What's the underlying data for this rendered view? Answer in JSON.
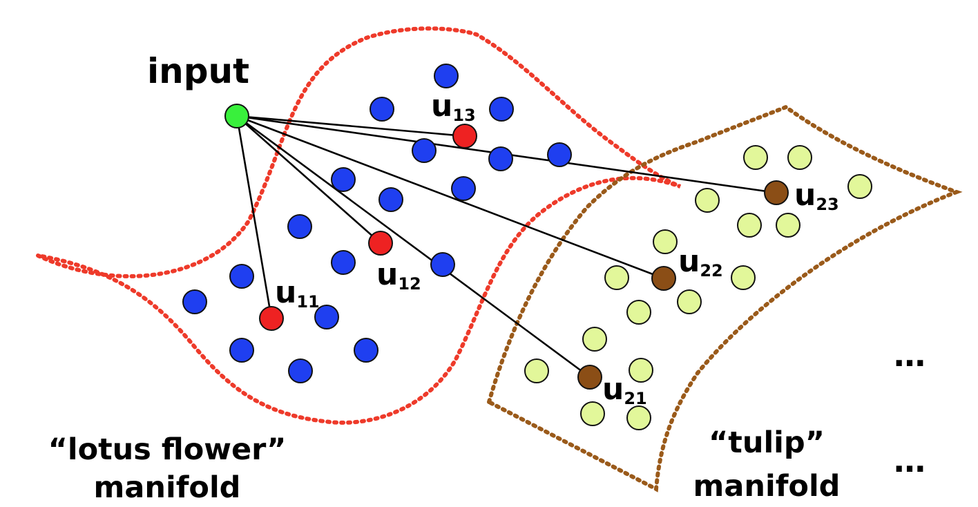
{
  "title": "input",
  "colors": {
    "lotus_boundary": "#ee3a2a",
    "tulip_boundary": "#9a5a1a",
    "lotus_points": "#1f3ff0",
    "tulip_points": "#e2f79a",
    "lotus_selected": "#ee2222",
    "tulip_selected": "#8b4e16",
    "input_node": "#39f03c",
    "edge": "#000000"
  },
  "manifolds": [
    {
      "id": "lotus",
      "line1": "“lotus flower”",
      "line2": "manifold"
    },
    {
      "id": "tulip",
      "line1": "“tulip”",
      "line2": "manifold"
    }
  ],
  "selected": [
    {
      "id": "u11",
      "letter": "u",
      "subscript": "11",
      "manifold": "lotus"
    },
    {
      "id": "u12",
      "letter": "u",
      "subscript": "12",
      "manifold": "lotus"
    },
    {
      "id": "u13",
      "letter": "u",
      "subscript": "13",
      "manifold": "lotus"
    },
    {
      "id": "u21",
      "letter": "u",
      "subscript": "21",
      "manifold": "tulip"
    },
    {
      "id": "u22",
      "letter": "u",
      "subscript": "22",
      "manifold": "tulip"
    },
    {
      "id": "u23",
      "letter": "u",
      "subscript": "23",
      "manifold": "tulip"
    }
  ],
  "ellipsis": [
    "…",
    "…"
  ]
}
